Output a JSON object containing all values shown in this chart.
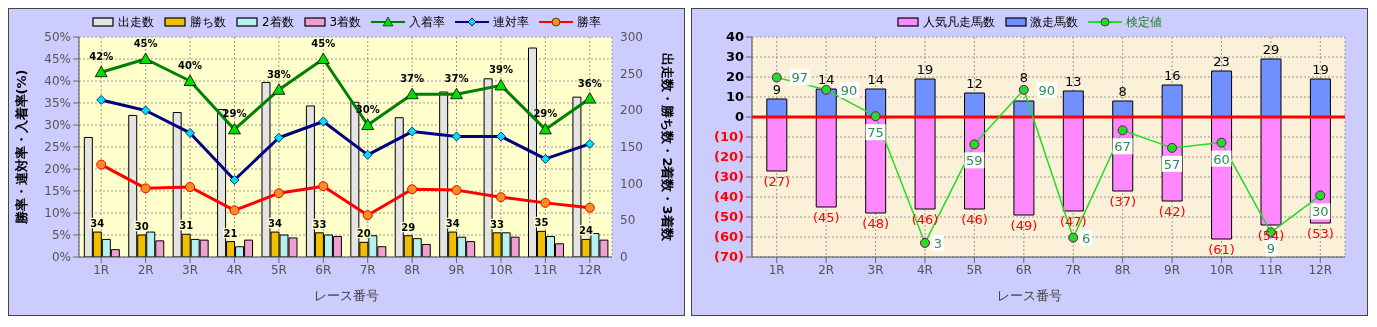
{
  "chart_data": [
    {
      "type": "bar",
      "categories": [
        "1R",
        "2R",
        "3R",
        "4R",
        "5R",
        "6R",
        "7R",
        "8R",
        "9R",
        "10R",
        "11R",
        "12R"
      ],
      "xlabel": "レース番号",
      "ylabel": "勝率・連対率・入着率(%)",
      "y2label": "出走数・勝ち数・2着数・3着数",
      "ylim": [
        0,
        50
      ],
      "yticks": [
        {
          "value": 0,
          "label": "0%"
        },
        {
          "value": 5,
          "label": "5%"
        },
        {
          "value": 10,
          "label": "10%"
        },
        {
          "value": 15,
          "label": "15%"
        },
        {
          "value": 20,
          "label": "20%"
        },
        {
          "value": 25,
          "label": "25%"
        },
        {
          "value": 30,
          "label": "30%"
        },
        {
          "value": 35,
          "label": "35%"
        },
        {
          "value": 40,
          "label": "40%"
        },
        {
          "value": 45,
          "label": "45%"
        },
        {
          "value": 50,
          "label": "50%"
        }
      ],
      "y2lim": [
        0,
        300
      ],
      "y2ticks": [
        0,
        50,
        100,
        150,
        200,
        250,
        300
      ],
      "grid": true,
      "legend": "top",
      "series": [
        {
          "name": "出走数",
          "axis": "y2",
          "color": "#e4e4e4",
          "values": [
            163,
            193,
            197,
            201,
            238,
            206,
            211,
            190,
            225,
            243,
            285,
            218
          ]
        },
        {
          "name": "勝ち数",
          "axis": "y2",
          "color": "#f0c000",
          "values": [
            34,
            30,
            31,
            21,
            34,
            33,
            20,
            29,
            34,
            33,
            35,
            24
          ],
          "value_labels": [
            "34",
            "30",
            "31",
            "21",
            "34",
            "33",
            "20",
            "29",
            "34",
            "33",
            "35",
            "24"
          ]
        },
        {
          "name": "2着数",
          "axis": "y2",
          "color": "#b8f0f0",
          "values": [
            24,
            34,
            24,
            14,
            30,
            30,
            29,
            25,
            27,
            33,
            28,
            32
          ]
        },
        {
          "name": "3着数",
          "axis": "y2",
          "color": "#f0a0d0",
          "values": [
            10,
            22,
            23,
            23,
            26,
            28,
            14,
            17,
            21,
            27,
            18,
            23
          ]
        },
        {
          "name": "入着率",
          "type": "line",
          "axis": "y",
          "color": "#008000",
          "marker": "triangle",
          "values": [
            42,
            45,
            40,
            29,
            38,
            45,
            30,
            37,
            37,
            39,
            29,
            36
          ],
          "value_labels": [
            "42%",
            "45%",
            "40%",
            "29%",
            "38%",
            "45%",
            "30%",
            "37%",
            "37%",
            "39%",
            "29%",
            "36%"
          ]
        },
        {
          "name": "連対率",
          "type": "line",
          "axis": "y",
          "color": "#000080",
          "marker": "diamond",
          "values": [
            35.7,
            33.3,
            28.2,
            17.5,
            27.1,
            30.8,
            23.2,
            28.5,
            27.4,
            27.4,
            22.3,
            25.7
          ]
        },
        {
          "name": "勝率",
          "type": "line",
          "axis": "y",
          "color": "#ff0000",
          "marker": "circle",
          "values": [
            21.0,
            15.6,
            15.9,
            10.6,
            14.5,
            16.1,
            9.5,
            15.4,
            15.2,
            13.6,
            12.3,
            11.2
          ]
        }
      ]
    },
    {
      "type": "bar",
      "stacked": true,
      "categories": [
        "1R",
        "2R",
        "3R",
        "4R",
        "5R",
        "6R",
        "7R",
        "8R",
        "9R",
        "10R",
        "11R",
        "12R"
      ],
      "xlabel": "レース番号",
      "ylim": [
        -70,
        40
      ],
      "yticks": [
        {
          "value": -70,
          "label": "(70)"
        },
        {
          "value": -60,
          "label": "(60)"
        },
        {
          "value": -50,
          "label": "(50)"
        },
        {
          "value": -40,
          "label": "(40)"
        },
        {
          "value": -30,
          "label": "(30)"
        },
        {
          "value": -20,
          "label": "(20)"
        },
        {
          "value": -10,
          "label": "(10)"
        },
        0,
        10,
        20,
        30,
        40
      ],
      "y2lim": [
        -5,
        120
      ],
      "grid": true,
      "legend": "top",
      "ref_lines": [
        {
          "axis": "y",
          "value": 0,
          "color": "#ff0000"
        }
      ],
      "series": [
        {
          "name": "人気凡走馬数",
          "color": "#ff88ff",
          "values": [
            -27,
            -45,
            -48,
            -46,
            -46,
            -49,
            -47,
            -37,
            -42,
            -61,
            -54,
            -53
          ],
          "value_labels": [
            "(27)",
            "(45)",
            "(48)",
            "(46)",
            "(46)",
            "(49)",
            "(47)",
            "(37)",
            "(42)",
            "(61)",
            "(54)",
            "(53)"
          ]
        },
        {
          "name": "激走馬数",
          "color": "#7090ff",
          "values": [
            9,
            14,
            14,
            19,
            12,
            8,
            13,
            8,
            16,
            23,
            29,
            19
          ],
          "value_labels": [
            "9",
            "14",
            "14",
            "19",
            "12",
            "8",
            "13",
            "8",
            "16",
            "23",
            "29",
            "19"
          ]
        },
        {
          "name": "検定値",
          "type": "line",
          "axis": "y2",
          "color": "#22dd22",
          "marker": "circle",
          "values": [
            97,
            90,
            75,
            3,
            59,
            90,
            6,
            67,
            57,
            60,
            9,
            30
          ],
          "value_labels": [
            "97",
            "90",
            "75",
            "3",
            "59",
            "90",
            "6",
            "67",
            "57",
            "60",
            "9",
            "30"
          ]
        }
      ]
    }
  ]
}
